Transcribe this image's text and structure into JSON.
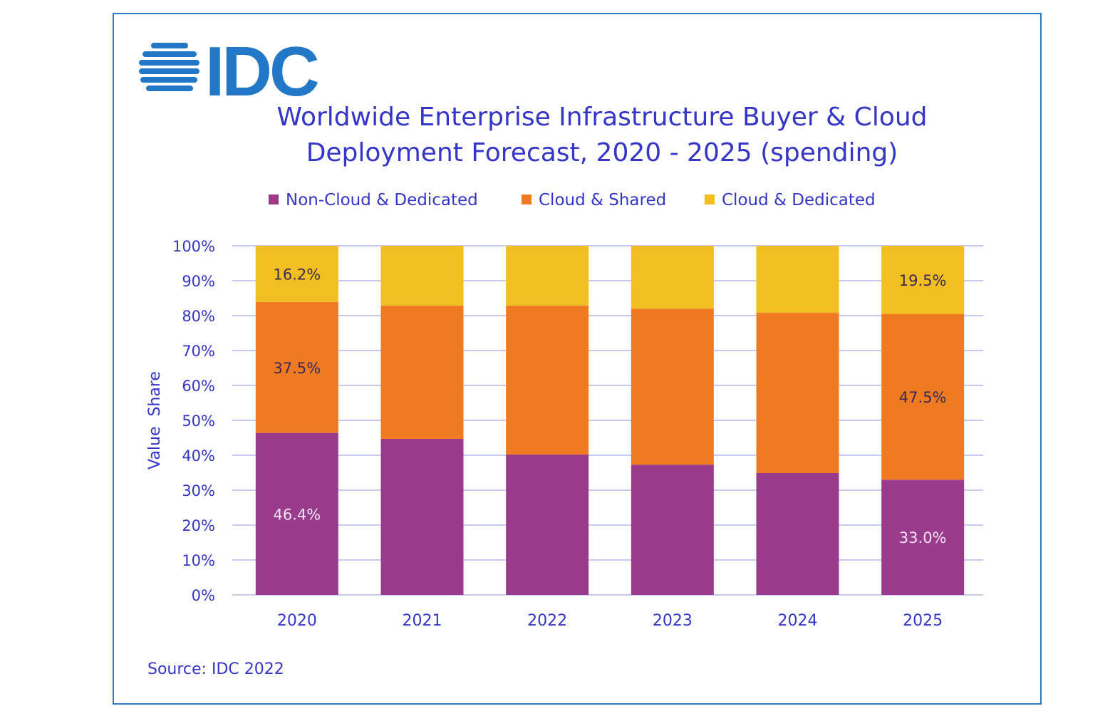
{
  "logo_text": "IDC",
  "chart_data": {
    "type": "bar",
    "stacked": true,
    "title": "Worldwide Enterprise Infrastructure Buyer & Cloud Deployment Forecast, 2020 - 2025 (spending)",
    "title_lines": [
      "Worldwide Enterprise Infrastructure Buyer & Cloud",
      "Deployment Forecast, 2020 - 2025 (spending)"
    ],
    "xlabel": "",
    "ylabel": "Value  Share",
    "ylim": [
      0,
      100
    ],
    "yticks": [
      "0%",
      "10%",
      "20%",
      "30%",
      "40%",
      "50%",
      "60%",
      "70%",
      "80%",
      "90%",
      "100%"
    ],
    "grid": true,
    "legend_position": "top",
    "categories": [
      "2020",
      "2021",
      "2022",
      "2023",
      "2024",
      "2025"
    ],
    "series": [
      {
        "name": "Non-Cloud & Dedicated",
        "color": "#9B3B8C",
        "values": [
          46.4,
          44.7,
          40.2,
          37.3,
          34.9,
          33.0
        ]
      },
      {
        "name": "Cloud & Shared",
        "color": "#F07A21",
        "values": [
          37.5,
          38.2,
          42.7,
          44.7,
          45.9,
          47.5
        ]
      },
      {
        "name": "Cloud & Dedicated",
        "color": "#F2BF22",
        "values": [
          16.2,
          17.1,
          17.1,
          18.0,
          19.2,
          19.5
        ]
      }
    ],
    "data_labels": [
      {
        "series": 0,
        "category": "2020",
        "text": "46.4%"
      },
      {
        "series": 1,
        "category": "2020",
        "text": "37.5%"
      },
      {
        "series": 2,
        "category": "2020",
        "text": "16.2%"
      },
      {
        "series": 0,
        "category": "2025",
        "text": "33.0%"
      },
      {
        "series": 1,
        "category": "2025",
        "text": "47.5%"
      },
      {
        "series": 2,
        "category": "2025",
        "text": "19.5%"
      }
    ],
    "source": "Source: IDC 2022"
  },
  "colors": {
    "text": "#3535C8",
    "logo": "#2278C7",
    "grid": "#C9C9F2",
    "frame": "#2E7BC4"
  }
}
